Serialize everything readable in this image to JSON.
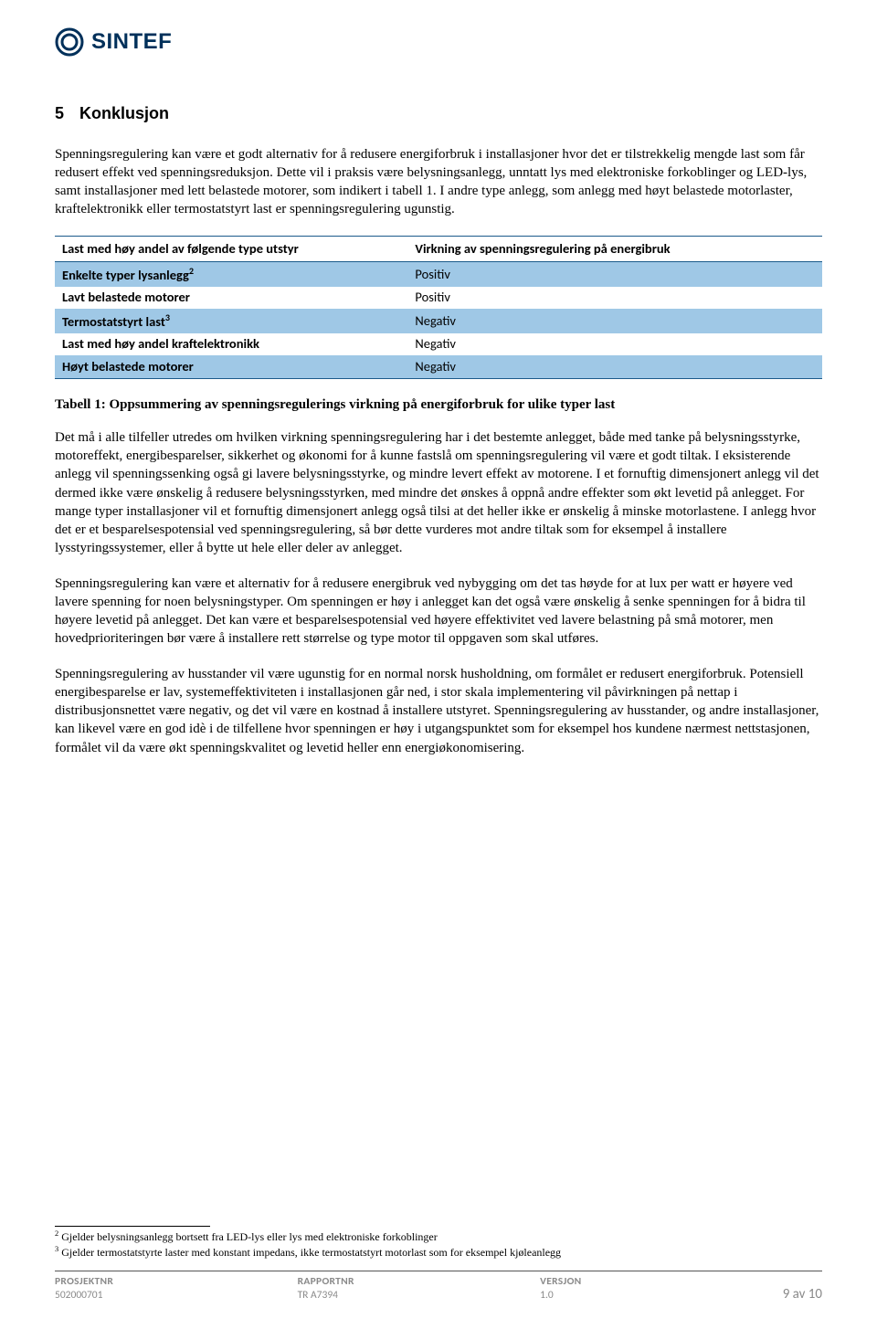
{
  "logo": {
    "text": "SINTEF",
    "color": "#00305a"
  },
  "section": {
    "number": "5",
    "title": "Konklusjon"
  },
  "para1": "Spenningsregulering kan være et godt alternativ for å redusere energiforbruk i installasjoner hvor det er tilstrekkelig mengde last som får redusert effekt ved spenningsreduksjon. Dette vil i praksis være belysningsanlegg, unntatt lys med elektroniske forkoblinger og LED-lys, samt installasjoner med lett belastede motorer, som indikert i tabell 1. I andre type anlegg, som anlegg med høyt belastede motorlaster, kraftelektronikk eller termostatstyrt last er spenningsregulering ugunstig.",
  "table": {
    "shade_color": "#9fc8e6",
    "border_color": "#1a5a8a",
    "headers": [
      "Last med høy andel av følgende type utstyr",
      "Virkning av spenningsregulering på energibruk"
    ],
    "rows": [
      {
        "left_html": "Enkelte typer lysanlegg<sup>2</sup>",
        "right": "Positiv",
        "shade": true
      },
      {
        "left_html": "Lavt belastede motorer",
        "right": "Positiv",
        "shade": false
      },
      {
        "left_html": "Termostatstyrt last<sup>3</sup>",
        "right": "Negativ",
        "shade": true
      },
      {
        "left_html": "Last med høy andel kraftelektronikk",
        "right": "Negativ",
        "shade": false
      },
      {
        "left_html": "Høyt belastede motorer",
        "right": "Negativ",
        "shade": true
      }
    ]
  },
  "caption": "Tabell 1: Oppsummering av spenningsregulerings virkning på energiforbruk for ulike typer last",
  "para2": "Det må i alle tilfeller utredes om hvilken virkning spenningsregulering har i det bestemte anlegget, både med tanke på belysningsstyrke, motoreffekt, energibesparelser, sikkerhet og økonomi for å kunne fastslå om spenningsregulering vil være et godt tiltak. I eksisterende anlegg vil spenningssenking også gi lavere belysningsstyrke, og mindre levert effekt av motorene. I et fornuftig dimensjonert anlegg vil det dermed ikke være ønskelig å redusere belysningsstyrken, med mindre det ønskes å oppnå andre effekter som økt levetid på anlegget. For mange typer installasjoner vil et fornuftig dimensjonert anlegg også tilsi at det heller ikke er ønskelig å minske motorlastene. I anlegg hvor det er et besparelsespotensial ved spenningsregulering, så bør dette vurderes mot andre tiltak som for eksempel å installere lysstyringssystemer, eller å bytte ut hele eller deler av anlegget.",
  "para3": "Spenningsregulering kan være et alternativ for å redusere energibruk ved nybygging om det tas høyde for at lux per watt er høyere ved lavere spenning for noen belysningstyper. Om spenningen er høy i anlegget kan det også være ønskelig å senke spenningen for å bidra til høyere levetid på anlegget. Det kan være et besparelsespotensial ved høyere effektivitet ved lavere belastning på små motorer, men hovedprioriteringen bør være å installere rett størrelse og type motor til oppgaven som skal utføres.",
  "para4": "Spenningsregulering av husstander vil være ugunstig for en normal norsk husholdning, om formålet er redusert energiforbruk. Potensiell energibesparelse er lav, systemeffektiviteten i installasjonen går ned, i stor skala implementering vil påvirkningen på nettap i distribusjonsnettet være negativ, og det vil være en kostnad å installere utstyret. Spenningsregulering av husstander, og andre installasjoner, kan likevel være en god idè i de tilfellene hvor spenningen er høy i utgangspunktet som for eksempel hos kundene nærmest nettstasjonen, formålet vil da være økt spenningskvalitet og levetid heller enn energiøkonomisering.",
  "footnotes": {
    "2": "Gjelder belysningsanlegg bortsett fra LED-lys eller lys med elektroniske forkoblinger",
    "3": "Gjelder termostatstyrte laster med konstant impedans, ikke termostatstyrt motorlast som for eksempel kjøleanlegg"
  },
  "footer": {
    "col1": {
      "label": "PROSJEKTNR",
      "value": "502000701"
    },
    "col2": {
      "label": "RAPPORTNR",
      "value": "TR A7394"
    },
    "col3": {
      "label": "VERSJON",
      "value": "1.0"
    },
    "page": "9 av 10"
  }
}
